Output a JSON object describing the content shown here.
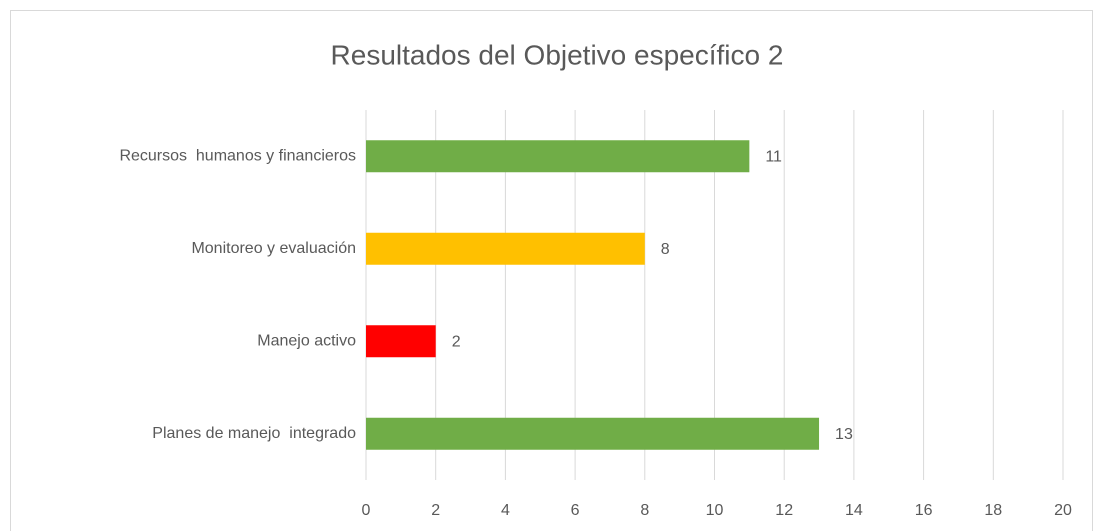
{
  "chart_data": {
    "type": "barh",
    "title": "Resultados del Objetivo específico 2",
    "categories": [
      "Recursos  humanos y financieros",
      "Monitoreo y evaluación",
      "Manejo activo",
      "Planes de manejo  integrado"
    ],
    "values": [
      11,
      8,
      2,
      13
    ],
    "colors": [
      "#70ad47",
      "#ffc000",
      "#ff0000",
      "#70ad47"
    ],
    "xlim": [
      0,
      20
    ],
    "xticks": [
      0,
      2,
      4,
      6,
      8,
      10,
      12,
      14,
      16,
      18,
      20
    ],
    "grid": true
  }
}
